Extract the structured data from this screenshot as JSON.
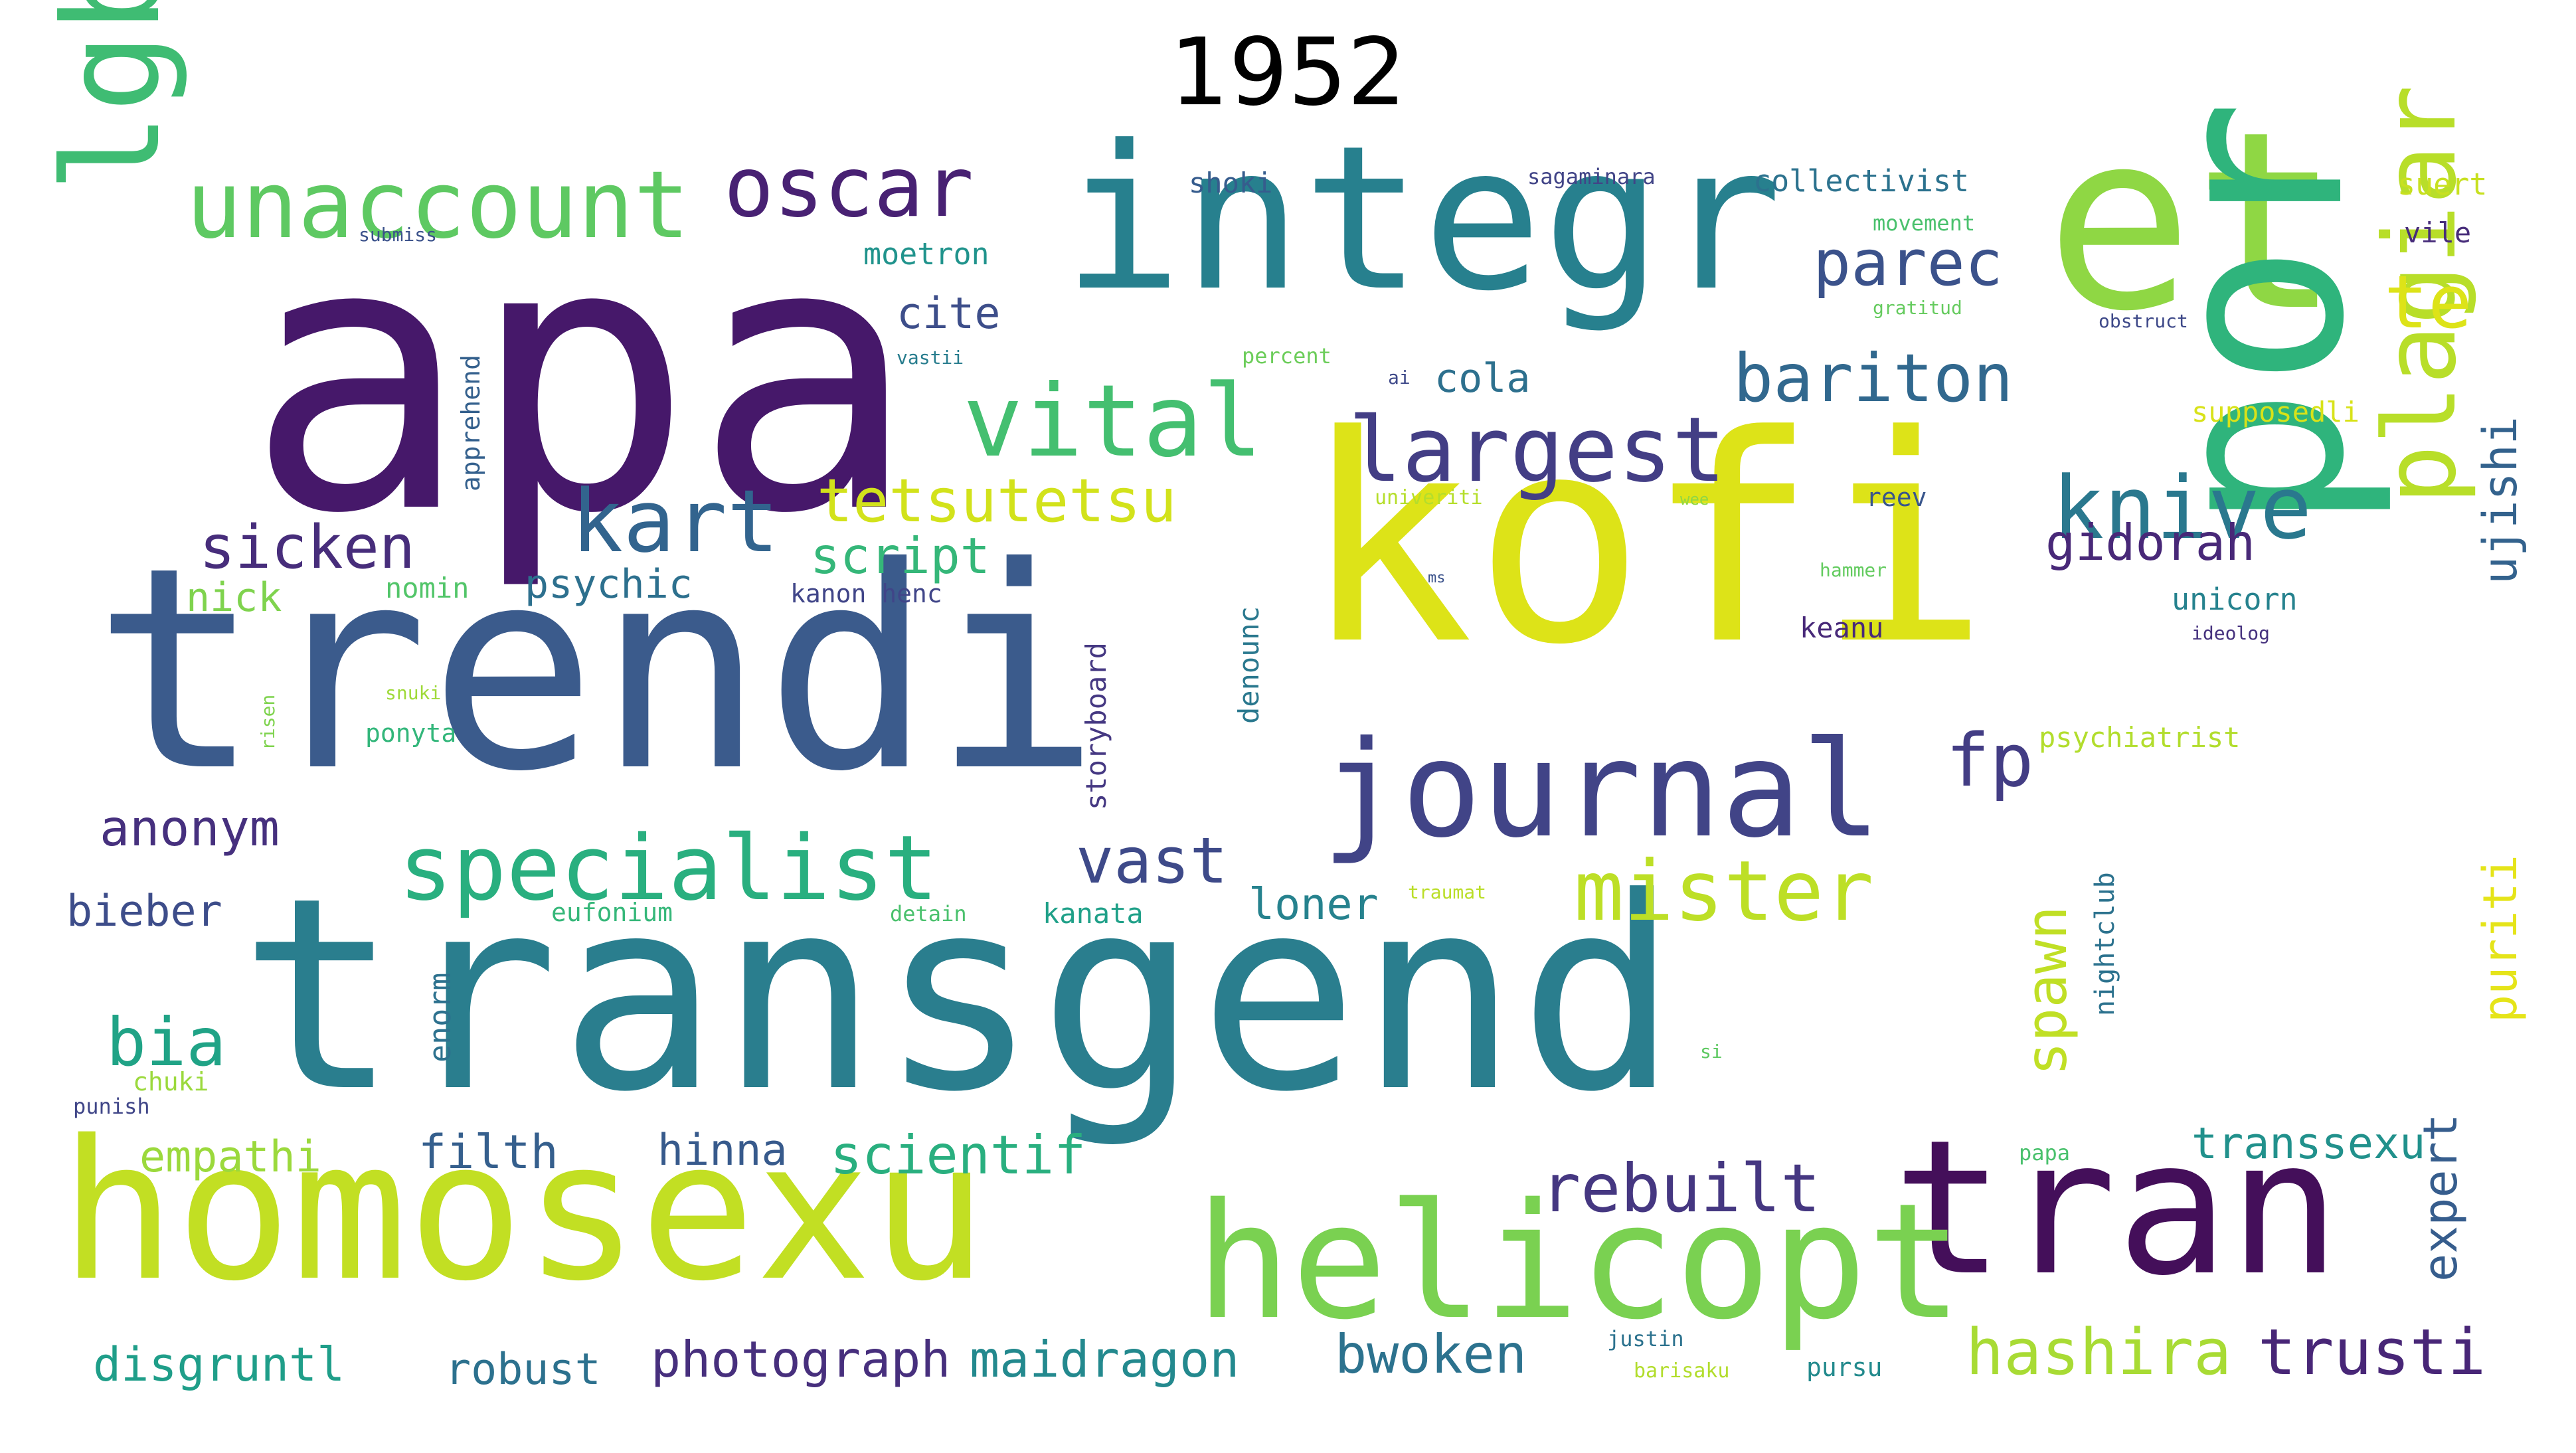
{
  "title": "1952",
  "words": [
    {
      "text": "apa",
      "color": "#46186a"
    },
    {
      "text": "kofi",
      "color": "#dde318"
    },
    {
      "text": "trendi",
      "color": "#3b5b8c"
    },
    {
      "text": "transgend",
      "color": "#2a7e8e"
    },
    {
      "text": "integr",
      "color": "#27808e"
    },
    {
      "text": "et",
      "color": "#8fd744"
    },
    {
      "text": "por",
      "color": "#2fb47c"
    },
    {
      "text": "homosexu",
      "color": "#c2df23"
    },
    {
      "text": "tran",
      "color": "#440f5a"
    },
    {
      "text": "helicopt",
      "color": "#7ad151"
    },
    {
      "text": "journal",
      "color": "#414487"
    },
    {
      "text": "lgbt",
      "color": "#3fbc73"
    },
    {
      "text": "unaccount",
      "color": "#5ec962"
    },
    {
      "text": "oscar",
      "color": "#482173"
    },
    {
      "text": "vital",
      "color": "#44bf70"
    },
    {
      "text": "largest",
      "color": "#433e85"
    },
    {
      "text": "kart",
      "color": "#32648e"
    },
    {
      "text": "knive",
      "color": "#2a788e"
    },
    {
      "text": "plagiar",
      "color": "#b8de29"
    },
    {
      "text": "specialist",
      "color": "#29af7f"
    },
    {
      "text": "mister",
      "color": "#bddf26"
    },
    {
      "text": "transsexu",
      "color": "#21918c"
    },
    {
      "text": "rebuilt",
      "color": "#453781"
    },
    {
      "text": "hashira",
      "color": "#a8db34"
    },
    {
      "text": "trusti",
      "color": "#482677"
    },
    {
      "text": "te",
      "color": "#dde318"
    },
    {
      "text": "parec",
      "color": "#3b528b"
    },
    {
      "text": "bariton",
      "color": "#31688e"
    },
    {
      "text": "fp",
      "color": "#433d84"
    },
    {
      "text": "tetsutetsu",
      "color": "#d2e21b"
    },
    {
      "text": "sicken",
      "color": "#472d7b"
    },
    {
      "text": "vast",
      "color": "#3e4a89"
    },
    {
      "text": "script",
      "color": "#35b779"
    },
    {
      "text": "gidorah",
      "color": "#482878"
    },
    {
      "text": "anonym",
      "color": "#46307e"
    },
    {
      "text": "bia",
      "color": "#20a386"
    },
    {
      "text": "spawn",
      "color": "#c0df25"
    },
    {
      "text": "puriti",
      "color": "#e5e419"
    },
    {
      "text": "ujishi",
      "color": "#33628d"
    },
    {
      "text": "expert",
      "color": "#365d8d"
    },
    {
      "text": "bieber",
      "color": "#3d4d8a"
    },
    {
      "text": "empathi",
      "color": "#9bd93c"
    },
    {
      "text": "filth",
      "color": "#355f8d"
    },
    {
      "text": "hinna",
      "color": "#375a8c"
    },
    {
      "text": "scientif",
      "color": "#29af7f"
    },
    {
      "text": "loner",
      "color": "#26828e"
    },
    {
      "text": "disgruntl",
      "color": "#1f9e89"
    },
    {
      "text": "robust",
      "color": "#2c718e"
    },
    {
      "text": "photograph",
      "color": "#472f7d"
    },
    {
      "text": "maidragon",
      "color": "#23898e"
    },
    {
      "text": "bwoken",
      "color": "#2c728e"
    },
    {
      "text": "cite",
      "color": "#3d4e8a"
    },
    {
      "text": "cola",
      "color": "#2d708e"
    },
    {
      "text": "psychic",
      "color": "#2d708e"
    },
    {
      "text": "nick",
      "color": "#7fd34e"
    },
    {
      "text": "nomin",
      "color": "#52c569"
    },
    {
      "text": "kanon henc",
      "color": "#404588"
    },
    {
      "text": "storyboard",
      "color": "#453882"
    },
    {
      "text": "denounc",
      "color": "#2a788e"
    },
    {
      "text": "enorm",
      "color": "#2d718e"
    },
    {
      "text": "nightclub",
      "color": "#2c728e"
    },
    {
      "text": "apprehend",
      "color": "#34608d"
    },
    {
      "text": "moetron",
      "color": "#20938c"
    },
    {
      "text": "shoki",
      "color": "#365c8d"
    },
    {
      "text": "collectivist",
      "color": "#2c728e"
    },
    {
      "text": "sagaminara",
      "color": "#414487"
    },
    {
      "text": "suert",
      "color": "#c8e020"
    },
    {
      "text": "vile",
      "color": "#472c7a"
    },
    {
      "text": "movement",
      "color": "#4ac16d"
    },
    {
      "text": "obstruct",
      "color": "#3e4989"
    },
    {
      "text": "gratitud",
      "color": "#65cb5e"
    },
    {
      "text": "submiss",
      "color": "#3b528b"
    },
    {
      "text": "vastii",
      "color": "#287d8e"
    },
    {
      "text": "percent",
      "color": "#6ccd5a"
    },
    {
      "text": "ai",
      "color": "#3e4989"
    },
    {
      "text": "supposedli",
      "color": "#d8e219"
    },
    {
      "text": "univeriti",
      "color": "#b5de2b"
    },
    {
      "text": "reev",
      "color": "#39568c"
    },
    {
      "text": "unicorn",
      "color": "#26828e"
    },
    {
      "text": "ideolog",
      "color": "#46327e"
    },
    {
      "text": "keanu",
      "color": "#482979"
    },
    {
      "text": "hammer",
      "color": "#63cb5f"
    },
    {
      "text": "psychiatrist",
      "color": "#b2dd2d"
    },
    {
      "text": "risen",
      "color": "#7fd34e"
    },
    {
      "text": "snuki",
      "color": "#9fda3a"
    },
    {
      "text": "ponyta",
      "color": "#32b67a"
    },
    {
      "text": "eufonium",
      "color": "#35b779"
    },
    {
      "text": "detain",
      "color": "#4ac16d"
    },
    {
      "text": "kanata",
      "color": "#1fa088"
    },
    {
      "text": "traumat",
      "color": "#bade28"
    },
    {
      "text": "chuki",
      "color": "#9bd93c"
    },
    {
      "text": "punish",
      "color": "#404688"
    },
    {
      "text": "papa",
      "color": "#4ac16d"
    },
    {
      "text": "justin",
      "color": "#2c728e"
    },
    {
      "text": "barisaku",
      "color": "#b2dd2d"
    },
    {
      "text": "pursu",
      "color": "#238a8d"
    },
    {
      "text": "si",
      "color": "#5ec962"
    },
    {
      "text": "wee",
      "color": "#90d743"
    },
    {
      "text": "ms",
      "color": "#3b528b"
    }
  ]
}
